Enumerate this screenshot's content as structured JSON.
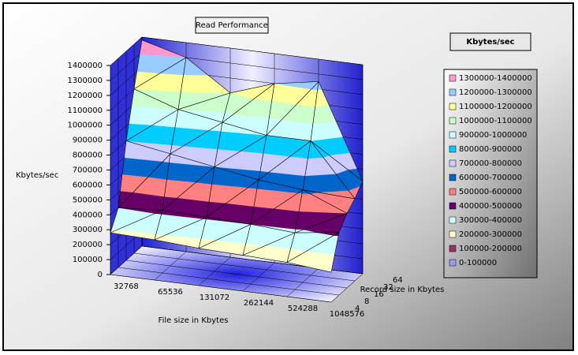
{
  "chart_data": {
    "type": "surface",
    "title": "Read Performance",
    "y_label": "Kbytes/sec",
    "x_label": "File size in Kbytes",
    "z_label": "Record size in Kbytes",
    "categories": [
      32768,
      65536,
      131072,
      262144,
      524288,
      1048576
    ],
    "depth_categories": [
      4,
      8,
      16,
      32,
      64
    ],
    "series": [
      {
        "name": "4",
        "values": [
          280000,
          270000,
          250000,
          240000,
          230000,
          200000
        ]
      },
      {
        "name": "8",
        "values": [
          400000,
          420000,
          410000,
          400000,
          380000,
          420000
        ]
      },
      {
        "name": "16",
        "values": [
          800000,
          750000,
          700000,
          650000,
          620000,
          500000
        ]
      },
      {
        "name": "32",
        "values": [
          1100000,
          1000000,
          950000,
          900000,
          900000,
          550000
        ]
      },
      {
        "name": "64",
        "values": [
          1380000,
          1300000,
          1100000,
          1200000,
          1250000,
          620000
        ]
      }
    ],
    "ylim": [
      0,
      1400000
    ],
    "yticks": [
      0,
      100000,
      200000,
      300000,
      400000,
      500000,
      600000,
      700000,
      800000,
      900000,
      1000000,
      1100000,
      1200000,
      1300000,
      1400000
    ],
    "grid": true,
    "legend": {
      "title": "Kbytes/sec",
      "position": "right",
      "entries": [
        {
          "label": "1300000-1400000",
          "color": "#FF99CC"
        },
        {
          "label": "1200000-1300000",
          "color": "#99CCFF"
        },
        {
          "label": "1100000-1200000",
          "color": "#FFFF99"
        },
        {
          "label": "1000000-1100000",
          "color": "#CCFFCC"
        },
        {
          "label": "900000-1000000",
          "color": "#CCFFFF"
        },
        {
          "label": "800000-900000",
          "color": "#00CCFF"
        },
        {
          "label": "700000-800000",
          "color": "#CCCCFF"
        },
        {
          "label": "600000-700000",
          "color": "#0066CC"
        },
        {
          "label": "500000-600000",
          "color": "#FF8080"
        },
        {
          "label": "400000-500000",
          "color": "#660066"
        },
        {
          "label": "300000-400000",
          "color": "#CCFFFF"
        },
        {
          "label": "200000-300000",
          "color": "#FFFFCC"
        },
        {
          "label": "100000-200000",
          "color": "#993366"
        },
        {
          "label": "0-100000",
          "color": "#9999FF"
        }
      ]
    }
  }
}
